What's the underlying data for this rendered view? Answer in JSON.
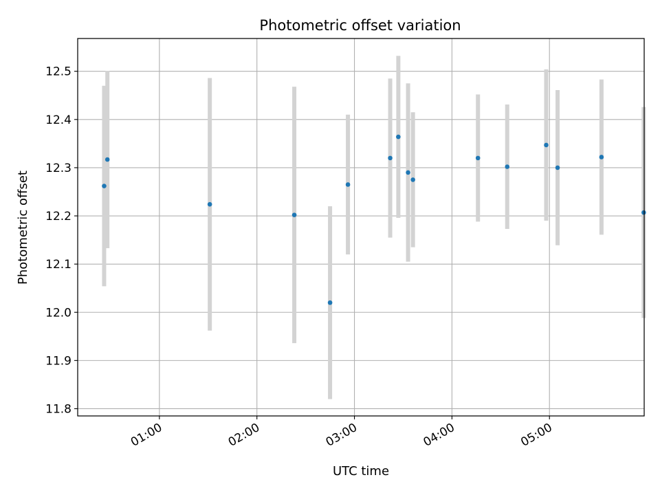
{
  "chart_data": {
    "type": "scatter",
    "title": "Photometric offset variation",
    "xlabel": "UTC time",
    "ylabel": "Photometric offset",
    "x_axis_type": "time",
    "xlim": [
      "00:10",
      "05:58"
    ],
    "ylim": [
      11.785,
      12.568
    ],
    "x_ticks": [
      "01:00",
      "02:00",
      "03:00",
      "04:00",
      "05:00"
    ],
    "y_ticks": [
      "11.8",
      "11.9",
      "12.0",
      "12.1",
      "12.2",
      "12.3",
      "12.4",
      "12.5"
    ],
    "grid": true,
    "errorbar_color": "#d3d3d3",
    "marker_color": "#1f77b4",
    "series": [
      {
        "points": [
          {
            "x": "00:26",
            "y": 12.262,
            "err": 0.208
          },
          {
            "x": "00:28",
            "y": 12.317,
            "err": 0.184
          },
          {
            "x": "01:31",
            "y": 12.224,
            "err": 0.262
          },
          {
            "x": "02:23",
            "y": 12.202,
            "err": 0.266
          },
          {
            "x": "02:45",
            "y": 12.02,
            "err": 0.2
          },
          {
            "x": "02:56",
            "y": 12.265,
            "err": 0.145
          },
          {
            "x": "03:22",
            "y": 12.32,
            "err": 0.165
          },
          {
            "x": "03:27",
            "y": 12.364,
            "err": 0.168
          },
          {
            "x": "03:33",
            "y": 12.29,
            "err": 0.185
          },
          {
            "x": "03:36",
            "y": 12.275,
            "err": 0.14
          },
          {
            "x": "04:16",
            "y": 12.32,
            "err": 0.132
          },
          {
            "x": "04:34",
            "y": 12.302,
            "err": 0.129
          },
          {
            "x": "04:58",
            "y": 12.347,
            "err": 0.157
          },
          {
            "x": "05:05",
            "y": 12.3,
            "err": 0.161
          },
          {
            "x": "05:32",
            "y": 12.322,
            "err": 0.161
          },
          {
            "x": "05:58",
            "y": 12.207,
            "err": 0.219
          }
        ]
      }
    ]
  }
}
